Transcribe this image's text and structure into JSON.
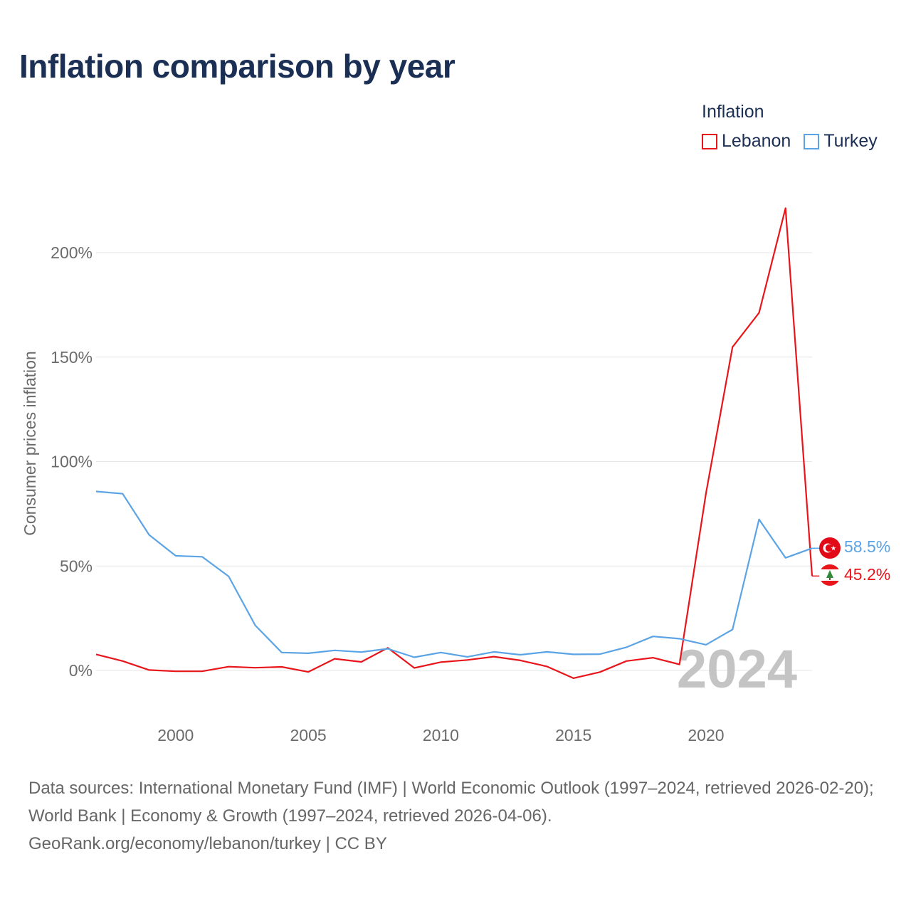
{
  "title": "Inflation comparison by year",
  "legend": {
    "title": "Inflation",
    "items": [
      {
        "label": "Lebanon",
        "color": "#e8151b"
      },
      {
        "label": "Turkey",
        "color": "#5aa4e6"
      }
    ]
  },
  "watermark_year": "2024",
  "end_labels": {
    "lebanon": "45.2%",
    "turkey": "58.5%"
  },
  "sources": {
    "line1": "Data sources: International Monetary Fund (IMF) | World Economic Outlook (1997–2024, retrieved 2026-02-20); World Bank | Economy & Growth (1997–2024, retrieved 2026-04-06).",
    "line2": "GeoRank.org/economy/lebanon/turkey | CC BY"
  },
  "chart_data": {
    "type": "line",
    "title": "Inflation comparison by year",
    "xlabel": "",
    "ylabel": "Consumer prices inflation",
    "xlim": [
      1997,
      2024
    ],
    "ylim": [
      -25,
      225
    ],
    "yticks": [
      0,
      50,
      100,
      150,
      200
    ],
    "ytick_labels": [
      "0%",
      "50%",
      "100%",
      "150%",
      "200%"
    ],
    "xticks": [
      2000,
      2005,
      2010,
      2015,
      2020
    ],
    "xtick_labels": [
      "2000",
      "2005",
      "2010",
      "2015",
      "2020"
    ],
    "x": [
      1997,
      1998,
      1999,
      2000,
      2001,
      2002,
      2003,
      2004,
      2005,
      2006,
      2007,
      2008,
      2009,
      2010,
      2011,
      2012,
      2013,
      2014,
      2015,
      2016,
      2017,
      2018,
      2019,
      2020,
      2021,
      2022,
      2023,
      2024
    ],
    "series": [
      {
        "name": "Lebanon",
        "color": "#e8151b",
        "values": [
          7.7,
          4.5,
          0.2,
          -0.4,
          -0.4,
          1.8,
          1.3,
          1.7,
          -0.7,
          5.6,
          4.1,
          10.8,
          1.2,
          4.0,
          5.0,
          6.6,
          4.8,
          1.9,
          -3.7,
          -0.8,
          4.5,
          6.1,
          2.9,
          84.9,
          154.8,
          171.2,
          221.3,
          45.2
        ]
      },
      {
        "name": "Turkey",
        "color": "#5aa4e6",
        "values": [
          85.7,
          84.6,
          64.9,
          54.9,
          54.4,
          45.0,
          21.6,
          8.6,
          8.2,
          9.6,
          8.8,
          10.4,
          6.3,
          8.6,
          6.5,
          8.9,
          7.5,
          8.9,
          7.7,
          7.8,
          11.1,
          16.3,
          15.2,
          12.3,
          19.6,
          72.3,
          53.9,
          58.5
        ]
      }
    ]
  }
}
